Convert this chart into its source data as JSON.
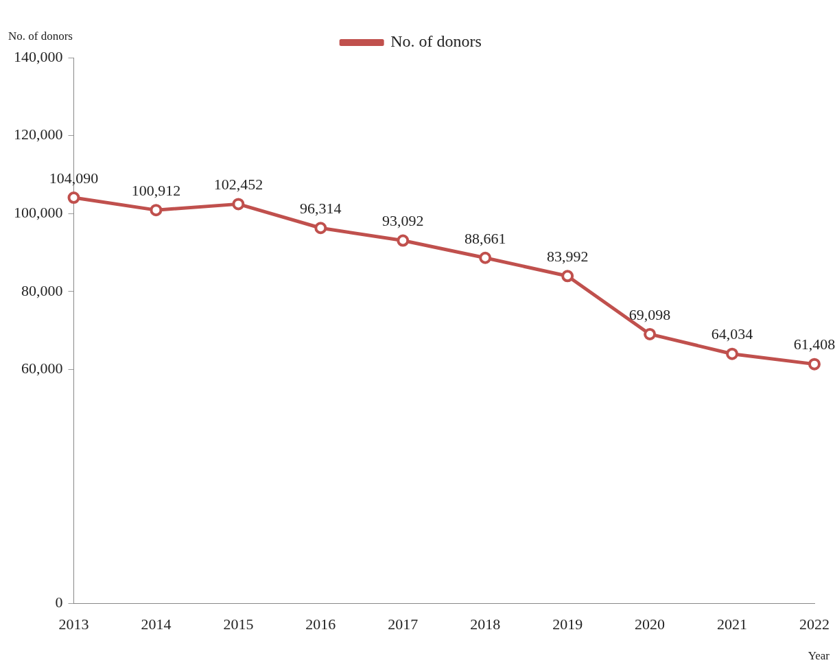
{
  "chart_data": {
    "type": "line",
    "ylabel": "No. of donors",
    "xlabel": "Year",
    "categories": [
      "2013",
      "2014",
      "2015",
      "2016",
      "2017",
      "2018",
      "2019",
      "2020",
      "2021",
      "2022"
    ],
    "series": [
      {
        "name": "No. of donors",
        "color": "#c0504d",
        "values": [
          104090,
          100912,
          102452,
          96314,
          93092,
          88661,
          83992,
          69098,
          64034,
          61408
        ],
        "value_labels": [
          "104,090",
          "100,912",
          "102,452",
          "96,314",
          "93,092",
          "88,661",
          "83,992",
          "69,098",
          "64,034",
          "61,408"
        ]
      }
    ],
    "ylim": [
      0,
      140000
    ],
    "yticks": [
      {
        "value": 0,
        "label": "0"
      },
      {
        "value": 60000,
        "label": "60,000"
      },
      {
        "value": 80000,
        "label": "80,000"
      },
      {
        "value": 100000,
        "label": "100,000"
      },
      {
        "value": 120000,
        "label": "120,000"
      },
      {
        "value": 140000,
        "label": "140,000"
      }
    ],
    "legend": "top",
    "marker": "circle",
    "line_style": "solid",
    "grid": false
  }
}
